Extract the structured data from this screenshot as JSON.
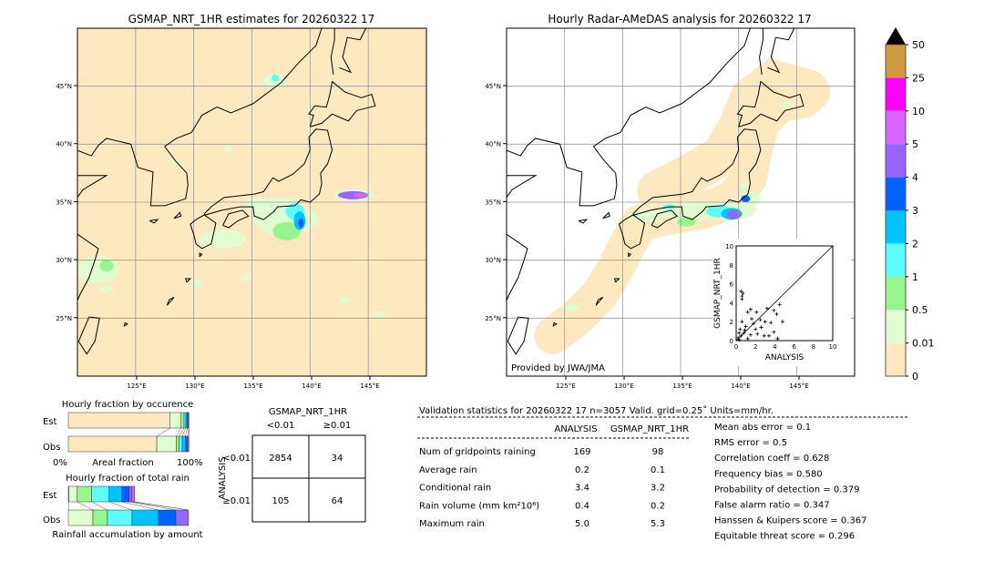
{
  "left_map": {
    "title": "GSMAP_NRT_1HR estimates for 20260322 17",
    "lon_ticks": [
      "125°E",
      "130°E",
      "135°E",
      "140°E",
      "145°E"
    ],
    "lat_ticks": [
      "45°N",
      "40°N",
      "35°N",
      "30°N",
      "25°N"
    ]
  },
  "right_map": {
    "title": "Hourly Radar-AMeDAS analysis for 20260322 17",
    "lon_ticks": [
      "125°E",
      "130°E",
      "135°E",
      "140°E",
      "145°E"
    ],
    "lat_ticks": [
      "45°N",
      "40°N",
      "35°N",
      "30°N",
      "25°N"
    ],
    "credit": "Provided by JWA/JMA"
  },
  "colorbar": {
    "labels": [
      "0",
      "0.01",
      "0.5",
      "1",
      "2",
      "3",
      "4",
      "5",
      "10",
      "25",
      "50"
    ],
    "colors": [
      "#fee8c0",
      "#e0fcd0",
      "#96f58c",
      "#5cfcfc",
      "#00c3ff",
      "#0063ff",
      "#9664ff",
      "#d864ff",
      "#ff00ff",
      "#d09a40"
    ],
    "extend_color": "#000000"
  },
  "chart_data": [
    {
      "type": "scatter",
      "title": "",
      "xlabel": "ANALYSIS",
      "ylabel": "GSMAP_NRT_1HR",
      "xlim": [
        0,
        10
      ],
      "ylim": [
        0,
        10
      ],
      "x_ticks": [
        "0",
        "2",
        "4",
        "6",
        "8",
        "10"
      ],
      "y_ticks": [
        "0",
        "2",
        "4",
        "6",
        "8",
        "10"
      ],
      "diagonal": true,
      "points": [
        [
          0.5,
          5.2
        ],
        [
          0.7,
          5.0
        ],
        [
          0.6,
          4.7
        ],
        [
          0.6,
          4.4
        ],
        [
          1.5,
          3.3
        ],
        [
          1.2,
          3.0
        ],
        [
          2.1,
          3.0
        ],
        [
          3.2,
          3.4
        ],
        [
          3.9,
          3.2
        ],
        [
          4.5,
          3.8
        ],
        [
          4.2,
          2.8
        ],
        [
          4.8,
          2.0
        ],
        [
          2.5,
          2.2
        ],
        [
          1.8,
          1.8
        ],
        [
          3.0,
          2.0
        ],
        [
          1.0,
          1.5
        ],
        [
          0.4,
          1.2
        ],
        [
          0.8,
          0.8
        ],
        [
          1.5,
          0.6
        ],
        [
          2.2,
          0.7
        ],
        [
          2.9,
          0.5
        ],
        [
          3.4,
          0.5
        ],
        [
          3.9,
          0.9
        ],
        [
          4.3,
          0.2
        ],
        [
          0.2,
          0.3
        ],
        [
          0.3,
          0.1
        ],
        [
          0.5,
          0.5
        ],
        [
          1.2,
          0.2
        ],
        [
          0.9,
          1.1
        ],
        [
          2.0,
          1.2
        ],
        [
          2.6,
          1.4
        ],
        [
          1.6,
          2.3
        ],
        [
          0.6,
          2.0
        ],
        [
          3.6,
          1.9
        ],
        [
          0.3,
          0.8
        ]
      ]
    },
    {
      "type": "bar",
      "title": "Hourly fraction by occurence",
      "xlabel": "Areal fraction",
      "x_ticks": [
        "0%",
        "100%"
      ],
      "categories": [
        "Est",
        "Obs"
      ],
      "bins": [
        "0",
        "0.01",
        "0.5",
        "1",
        "2",
        "3",
        "4"
      ],
      "series": [
        {
          "name": "Est",
          "values": [
            84.0,
            9.0,
            2.5,
            1.5,
            1.2,
            0.8,
            0.5
          ]
        },
        {
          "name": "Obs",
          "values": [
            73.0,
            16.0,
            2.5,
            2.5,
            2.5,
            2.0,
            1.0
          ]
        }
      ]
    },
    {
      "type": "bar",
      "title": "Hourly fraction of total rain",
      "xlabel": "Rainfall accumulation by amount",
      "categories": [
        "Est",
        "Obs"
      ],
      "bins": [
        "0",
        "0.01",
        "0.5",
        "1",
        "2",
        "3",
        "4",
        "5"
      ],
      "series": [
        {
          "name": "Est",
          "values": [
            0.5,
            6.8,
            12.0,
            14.3,
            10.5,
            6.0,
            2.3,
            2.3
          ]
        },
        {
          "name": "Obs",
          "values": [
            0,
            20.3,
            12.0,
            20.3,
            21.8,
            14.3,
            10.5,
            0
          ]
        }
      ]
    }
  ],
  "contingency": {
    "title": "GSMAP_NRT_1HR",
    "col_labels": [
      "<0.01",
      "≥0.01"
    ],
    "row_axis": "ANALYSIS",
    "row_labels": [
      "<0.01",
      "≥0.01"
    ],
    "cells": [
      [
        "2854",
        "34"
      ],
      [
        "105",
        "64"
      ]
    ]
  },
  "stats": {
    "header": "Validation statistics for 20260322 17  n=3057 Valid. grid=0.25˚ Units=mm/hr.",
    "columns": [
      "ANALYSIS",
      "GSMAP_NRT_1HR"
    ],
    "rows": [
      {
        "label": "Num of gridpoints raining",
        "analysis": "169",
        "gsmap": "98"
      },
      {
        "label": "Average rain",
        "analysis": "0.2",
        "gsmap": "0.1"
      },
      {
        "label": "Conditional rain",
        "analysis": "3.4",
        "gsmap": "3.2"
      },
      {
        "label": "Rain volume (mm km²10⁶)",
        "analysis": "0.4",
        "gsmap": "0.2"
      },
      {
        "label": "Maximum rain",
        "analysis": "5.0",
        "gsmap": "5.3"
      }
    ],
    "scores": [
      "Mean abs error =    0.1",
      "RMS error =    0.5",
      "Correlation coeff =  0.628",
      "Frequency bias =  0.580",
      "Probability of detection =  0.379",
      "False alarm ratio =  0.347",
      "Hanssen & Kuipers score =  0.367",
      "Equitable threat score =  0.296"
    ]
  }
}
